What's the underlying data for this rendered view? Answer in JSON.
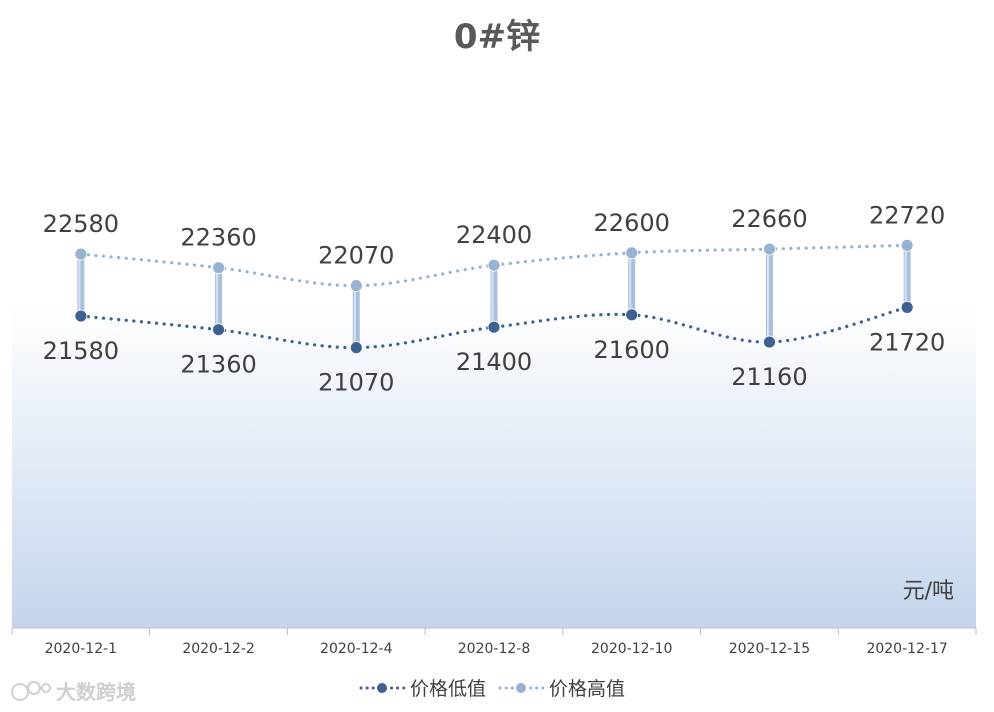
{
  "chart_data": {
    "type": "line",
    "title": "0#锌",
    "unit_label": "元/吨",
    "categories": [
      "2020-12-1",
      "2020-12-2",
      "2020-12-4",
      "2020-12-8",
      "2020-12-10",
      "2020-12-15",
      "2020-12-17"
    ],
    "series": [
      {
        "name": "价格低值",
        "values": [
          21580,
          21360,
          21070,
          21400,
          21600,
          21160,
          21720
        ],
        "color": "#3d6291",
        "label_position": "below"
      },
      {
        "name": "价格高值",
        "values": [
          22580,
          22360,
          22070,
          22400,
          22600,
          22660,
          22720
        ],
        "color": "#98b2d2",
        "label_position": "above"
      }
    ],
    "high_low_lines": true,
    "line_style": "dotted-smooth",
    "gridlines": false,
    "legend_position": "bottom",
    "background": "light-blue gradient plot area"
  },
  "watermark": "大数跨境"
}
